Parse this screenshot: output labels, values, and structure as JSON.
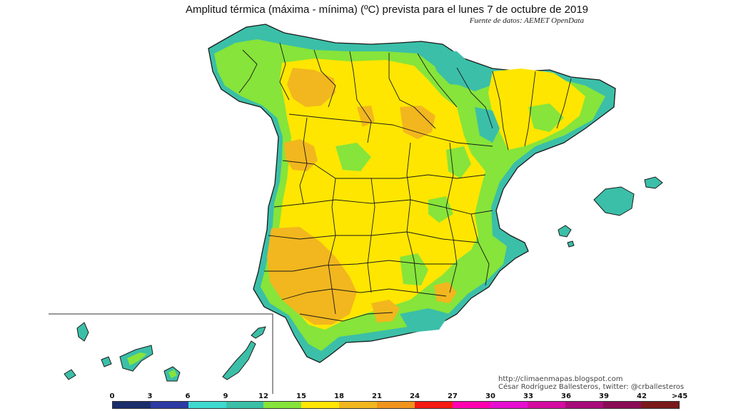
{
  "header": {
    "title": "Amplitud térmica (máxima - mínima) (ºC) prevista para el lunes 7 de octubre de 2019",
    "source": "Fuente de datos: AEMET OpenData"
  },
  "credits": {
    "blog": "http://climaenmapas.blogspot.com",
    "author": "César Rodríguez Ballesteros, twitter: @crballesteros"
  },
  "legend": {
    "ticks": [
      "0",
      "3",
      "6",
      "9",
      "12",
      "15",
      "18",
      "21",
      "24",
      "27",
      "30",
      "33",
      "36",
      "39",
      "42",
      ">45"
    ],
    "colors": [
      "#1b2d6b",
      "#2e3aa3",
      "#3fd9cf",
      "#3bbfa8",
      "#86e43a",
      "#ffe600",
      "#f2b71e",
      "#f0941c",
      "#f51a12",
      "#ff00b0",
      "#e60fd0",
      "#d40ca0",
      "#a80c7a",
      "#8a0c55",
      "#7a1a1a"
    ]
  },
  "map_palette": {
    "sea": "#ffffff",
    "teal": "#3bbfa8",
    "green": "#86e43a",
    "yellow": "#ffe600",
    "orange": "#f2b71e",
    "border": "#1a1a1a"
  }
}
